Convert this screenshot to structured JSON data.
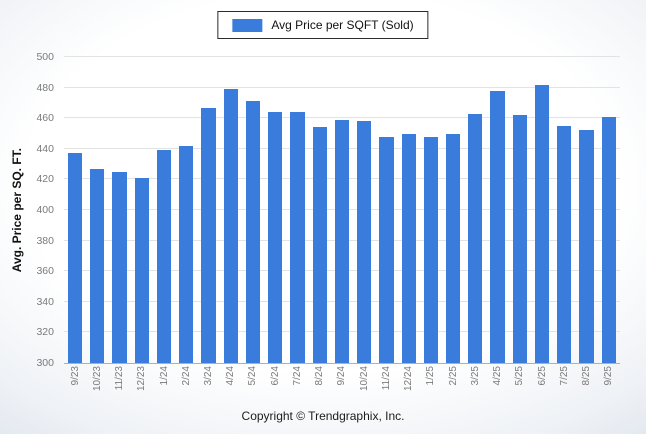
{
  "legend": {
    "label": "Avg Price per SQFT (Sold)",
    "swatch_color": "#3a7cdb"
  },
  "y_axis": {
    "title": "Avg. Price per SQ. FT."
  },
  "footer": {
    "copyright": "Copyright © Trendgraphix, Inc."
  },
  "chart_data": {
    "type": "bar",
    "title": "Avg Price per SQFT (Sold)",
    "xlabel": "",
    "ylabel": "Avg. Price per SQ. FT.",
    "ylim": [
      300,
      500
    ],
    "yticks": [
      300,
      320,
      340,
      360,
      380,
      400,
      420,
      440,
      460,
      480,
      500
    ],
    "grid": true,
    "legend_position": "top-center",
    "bar_color": "#3a7cdb",
    "categories": [
      "9/23",
      "10/23",
      "11/23",
      "12/23",
      "1/24",
      "2/24",
      "3/24",
      "4/24",
      "5/24",
      "6/24",
      "7/24",
      "8/24",
      "9/24",
      "10/24",
      "11/24",
      "12/24",
      "1/25",
      "2/25",
      "3/25",
      "4/25",
      "5/25",
      "6/25",
      "7/25",
      "8/25",
      "9/25"
    ],
    "values": [
      437,
      427,
      425,
      421,
      439,
      442,
      467,
      479,
      471,
      464,
      464,
      454,
      459,
      458,
      448,
      450,
      448,
      450,
      463,
      478,
      462,
      482,
      455,
      452,
      461
    ]
  }
}
